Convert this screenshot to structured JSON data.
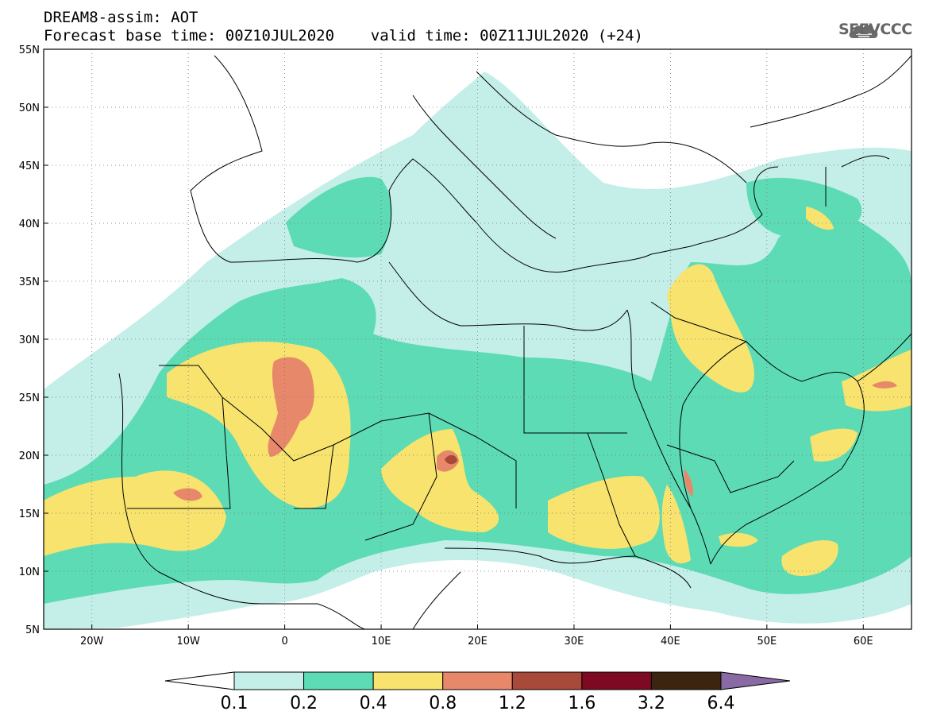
{
  "header": {
    "title_line1": "DREAM8-assim: AOT",
    "title_line2": "Forecast base time: 00Z10JUL2020    valid time: 00Z11JUL2020 (+24)",
    "logo_text": "SEEVCCC"
  },
  "map": {
    "projection": "lat-lon",
    "lon_range": [
      -25,
      65
    ],
    "lat_range": [
      5,
      55
    ],
    "gridlines": "dotted",
    "lat_ticks": [
      {
        "value": 55,
        "label": "55N"
      },
      {
        "value": 50,
        "label": "50N"
      },
      {
        "value": 45,
        "label": "45N"
      },
      {
        "value": 40,
        "label": "40N"
      },
      {
        "value": 35,
        "label": "35N"
      },
      {
        "value": 30,
        "label": "30N"
      },
      {
        "value": 25,
        "label": "25N"
      },
      {
        "value": 20,
        "label": "20N"
      },
      {
        "value": 15,
        "label": "15N"
      },
      {
        "value": 10,
        "label": "10N"
      },
      {
        "value": 5,
        "label": "5N"
      }
    ],
    "lon_ticks": [
      {
        "value": -20,
        "label": "20W"
      },
      {
        "value": -10,
        "label": "10W"
      },
      {
        "value": 0,
        "label": "0"
      },
      {
        "value": 10,
        "label": "10E"
      },
      {
        "value": 20,
        "label": "20E"
      },
      {
        "value": 30,
        "label": "30E"
      },
      {
        "value": 40,
        "label": "40E"
      },
      {
        "value": 50,
        "label": "50E"
      },
      {
        "value": 60,
        "label": "60E"
      }
    ]
  },
  "colorbar": {
    "labels": [
      "0.1",
      "0.2",
      "0.4",
      "0.8",
      "1.2",
      "1.6",
      "3.2",
      "6.4"
    ],
    "colors": [
      "#ffffff",
      "#c4eee8",
      "#5ddbb5",
      "#f7e36e",
      "#e8886a",
      "#a8493a",
      "#7d0a22",
      "#3b2410",
      "#8a6aa4"
    ]
  }
}
